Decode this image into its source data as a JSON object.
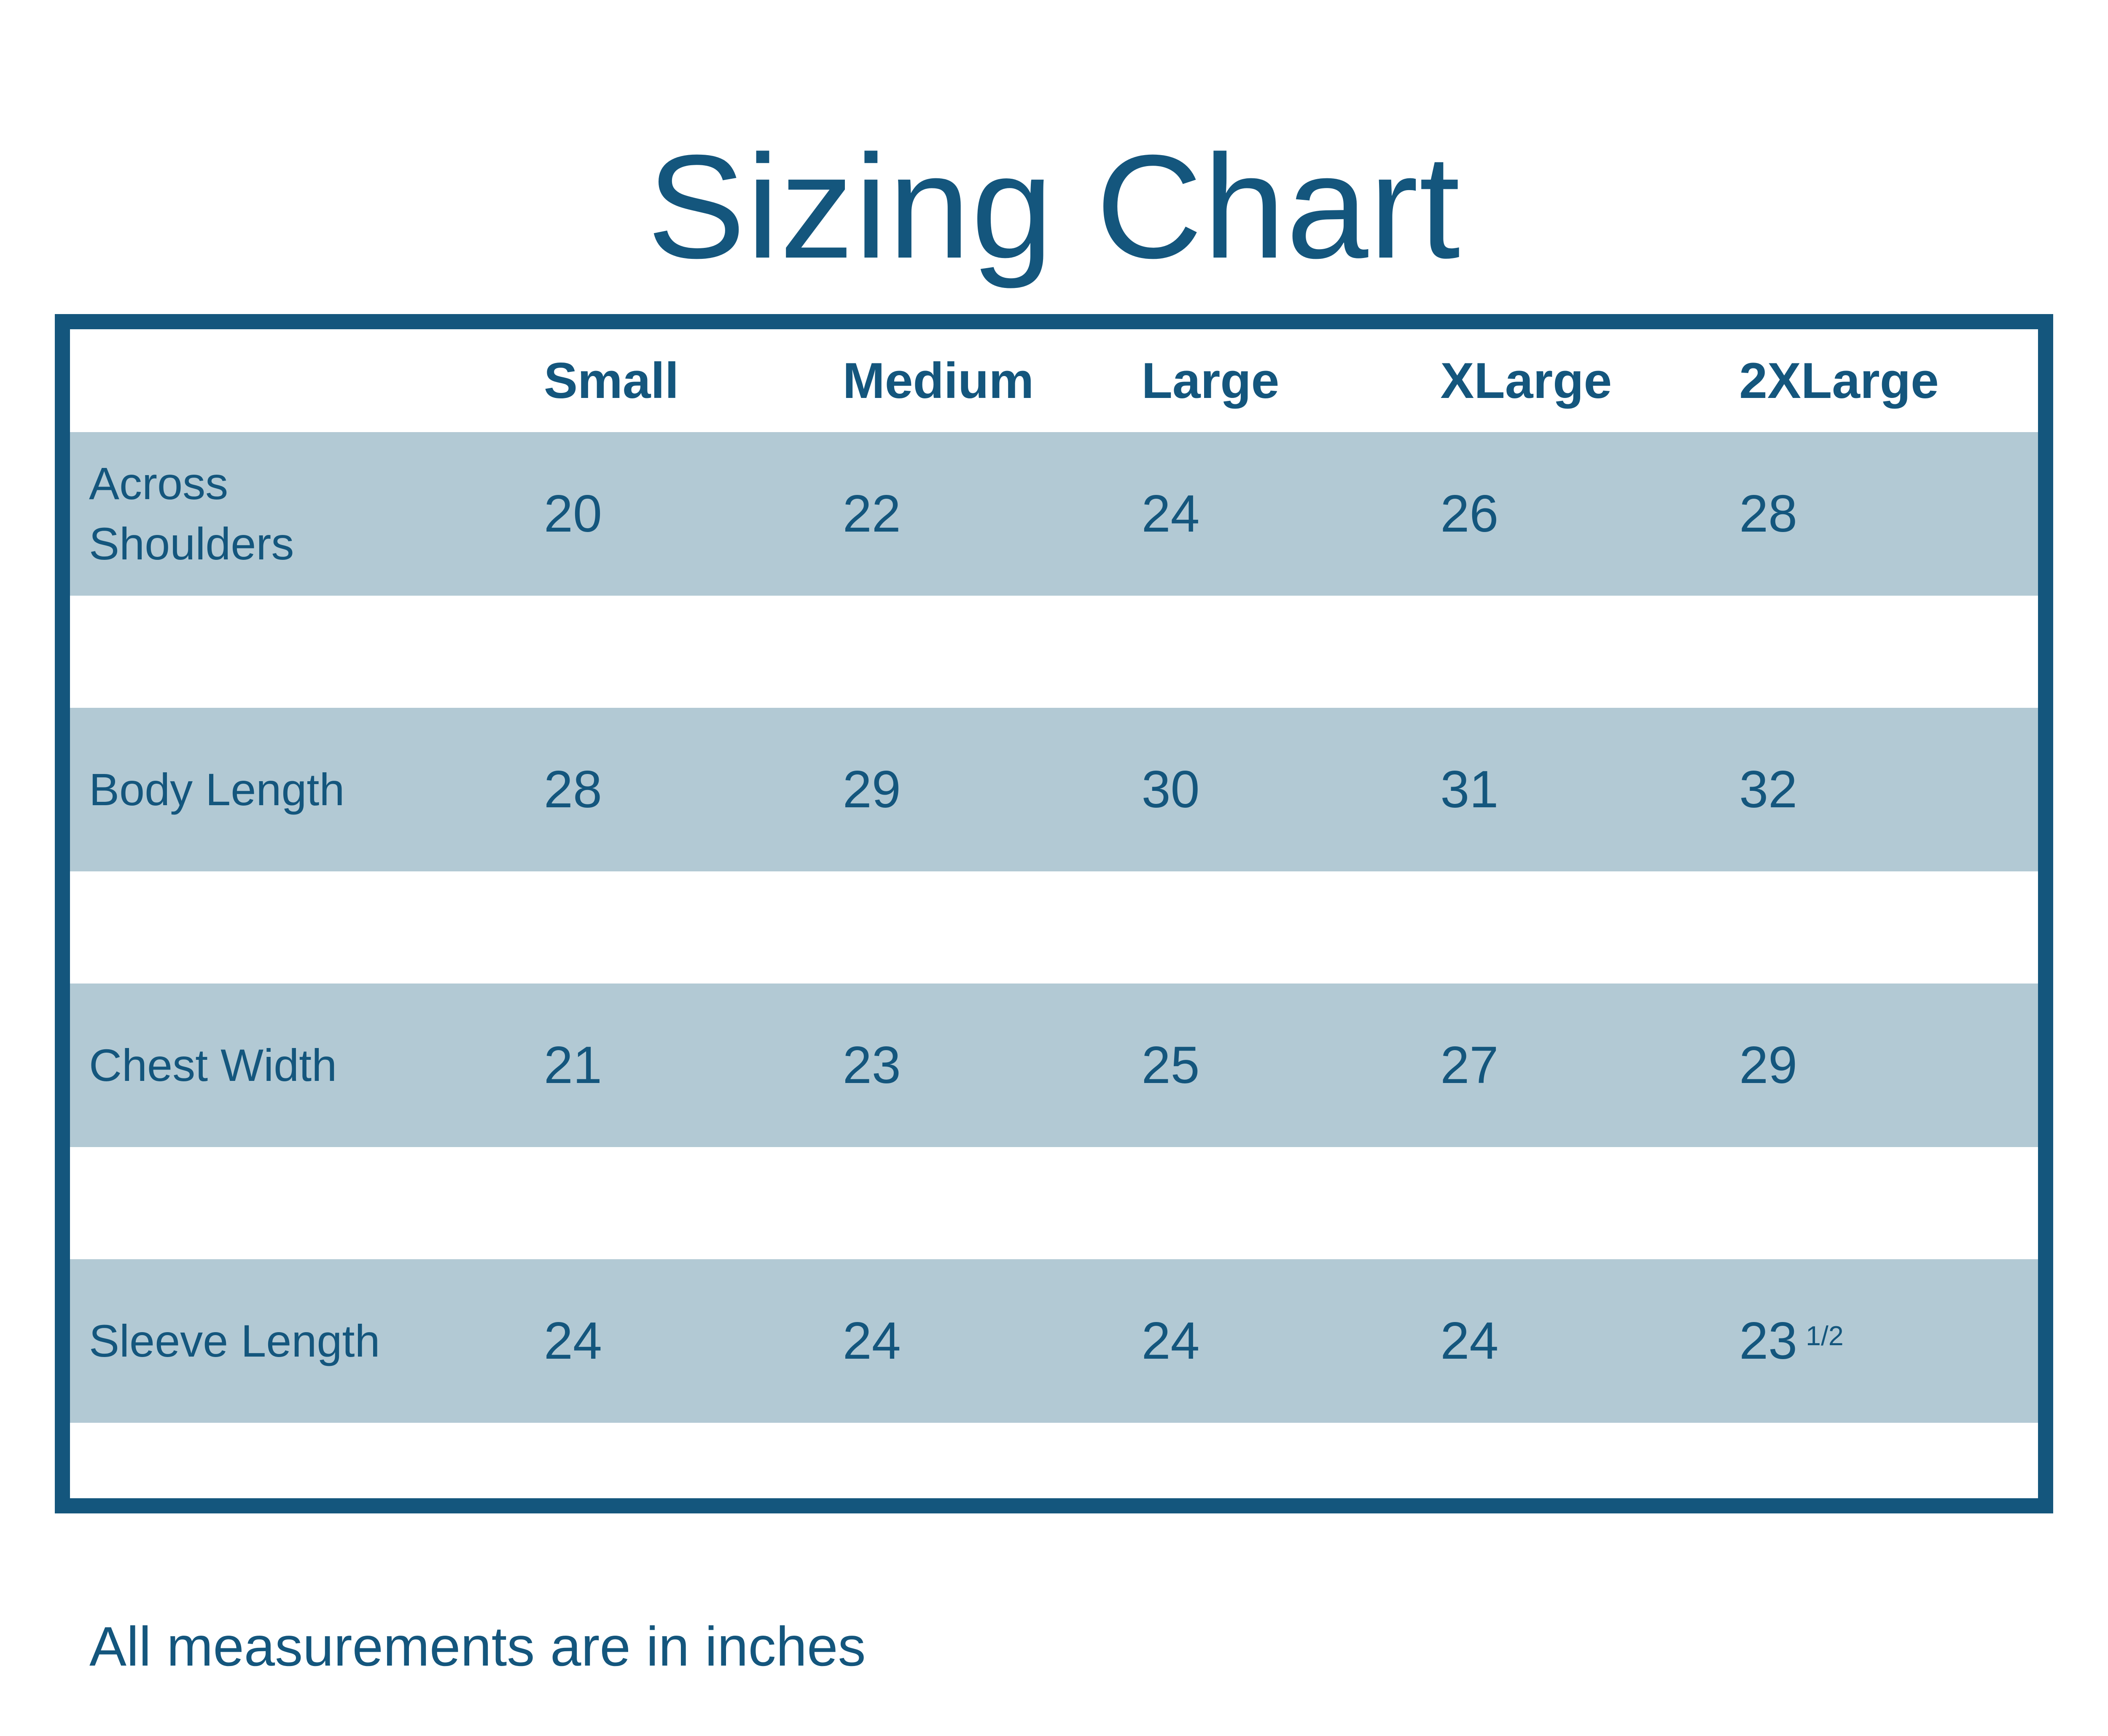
{
  "page": {
    "title": "Sizing Chart",
    "footnote": "All measurements are in inches"
  },
  "colors": {
    "accent": "#14567d",
    "row_bg": "#b2c9d4",
    "page_bg": "#ffffff"
  },
  "table": {
    "columns": [
      "Small",
      "Medium",
      "Large",
      "XLarge",
      "2XLarge"
    ],
    "rows": [
      {
        "label": "Across Shoulders",
        "values": [
          "20",
          "22",
          "24",
          "26",
          "28"
        ],
        "sup": ""
      },
      {
        "label": "Body Length",
        "values": [
          "28",
          "29",
          "30",
          "31",
          "32"
        ],
        "sup": ""
      },
      {
        "label": "Chest Width",
        "values": [
          "21",
          "23",
          "25",
          "27",
          "29"
        ],
        "sup": ""
      },
      {
        "label": "Sleeve Length",
        "values": [
          "24",
          "24",
          "24",
          "24",
          "23"
        ],
        "sup": "1/2"
      }
    ]
  },
  "chart_data": {
    "type": "table",
    "title": "Sizing Chart",
    "note": "All measurements are in inches",
    "columns": [
      "Small",
      "Medium",
      "Large",
      "XLarge",
      "2XLarge"
    ],
    "row_labels": [
      "Across Shoulders",
      "Body Length",
      "Chest Width",
      "Sleeve Length"
    ],
    "values": [
      [
        20,
        22,
        24,
        26,
        28
      ],
      [
        28,
        29,
        30,
        31,
        32
      ],
      [
        21,
        23,
        25,
        27,
        29
      ],
      [
        24,
        24,
        24,
        24,
        23.5
      ]
    ],
    "units": "inches",
    "layout": "striped rows, no vertical gridlines, thick outer border"
  }
}
